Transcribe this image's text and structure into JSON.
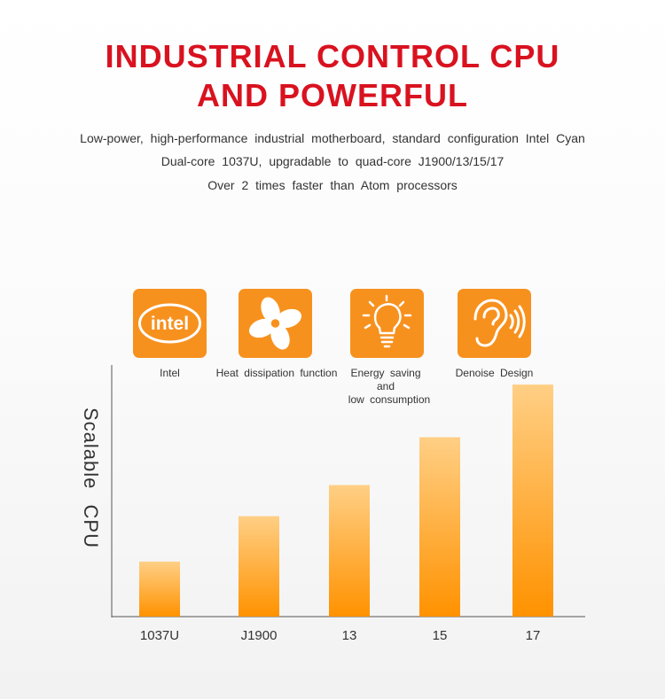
{
  "header": {
    "title_line1": "INDUSTRIAL CONTROL CPU",
    "title_line2": "AND POWERFUL",
    "desc_line1": "Low-power, high-performance industrial motherboard, standard configuration Intel Cyan",
    "desc_line2": "Dual-core 1037U, upgradable to quad-core J1900/13/15/17",
    "desc_line3": "Over 2 times faster than Atom processors"
  },
  "features": [
    {
      "label": "Intel",
      "icon": "intel-logo-icon",
      "logo_text": "intel"
    },
    {
      "label": "Heat dissipation function",
      "icon": "fan-icon"
    },
    {
      "label": "Energy saving and",
      "label2": "low consumption",
      "icon": "lightbulb-icon"
    },
    {
      "label": "Denoise Design",
      "icon": "ear-icon"
    }
  ],
  "colors": {
    "title": "#d9121f",
    "icon_bg": "#f7911e",
    "bar_top": "#ffcf85",
    "bar_bottom": "#ff9200"
  },
  "chart_data": {
    "type": "bar",
    "categories": [
      "1037U",
      "J1900",
      "13",
      "15",
      "17"
    ],
    "values": [
      2.3,
      4.2,
      5.5,
      7.5,
      9.7
    ],
    "ylabel": "Scalable CPU",
    "ylim": [
      0,
      10
    ],
    "grid": false
  }
}
